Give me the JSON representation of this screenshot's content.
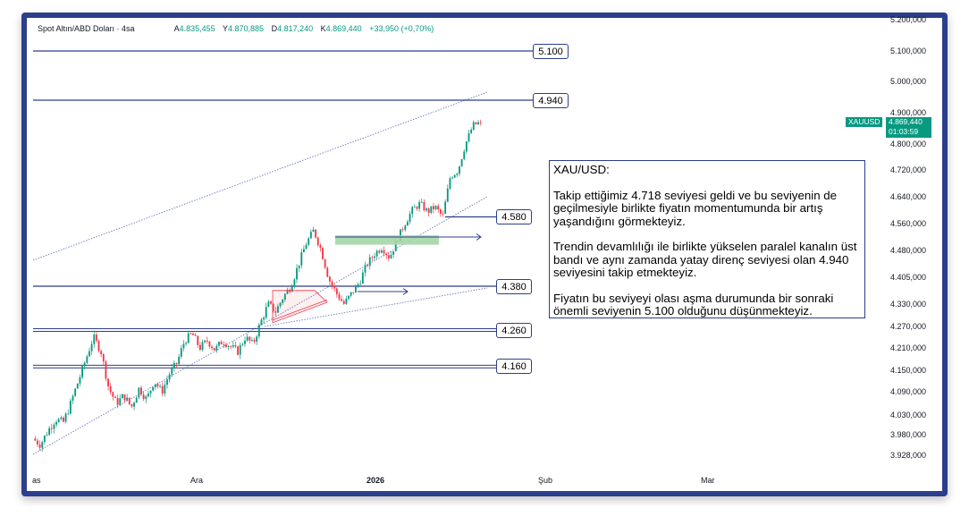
{
  "header": {
    "symbol_title": "Spot Altın/ABD Doları · 4sa",
    "open_label": "A",
    "open_value": "4.835,455",
    "high_label": "Y",
    "high_value": "4.870,885",
    "low_label": "D",
    "low_value": "4.817,240",
    "close_label": "K",
    "close_value": "4.869,440",
    "change": "+33,950 (+0,70%)"
  },
  "price_tag": {
    "symbol": "XAUUSD",
    "price": "4.869,440",
    "countdown": "01:03:59"
  },
  "annotation": {
    "title": "XAU/USD:",
    "paragraphs": [
      "Takip ettiğimiz 4.718 seviyesi geldi ve bu seviyenin de geçilmesiyle birlikte fiyatın momentumunda bir artış yaşandığını görmekteyiz.",
      "Trendin devamlılığı ile birlikte yükselen paralel kanalın üst bandı ve aynı zamanda yatay direnç seviyesi olan 4.940 seviyesini takip etmekteyiz.",
      "Fiyatın bu seviyeyi olası aşma durumunda bir sonraki önemli seviyenin 5.100 olduğunu düşünmekteyiz."
    ]
  },
  "levels": [
    {
      "label": "5.100",
      "value": 5100
    },
    {
      "label": "4.940",
      "value": 4940
    },
    {
      "label": "4.580",
      "value": 4580
    },
    {
      "label": "4.380",
      "value": 4380
    },
    {
      "label": "4.260",
      "value": 4260
    },
    {
      "label": "4.160",
      "value": 4160
    }
  ],
  "colors": {
    "up": "#089981",
    "down": "#f23645",
    "level_line": "#2b3f8c",
    "channel": "#7b86c8",
    "zone": "#a5d6a7"
  },
  "chart_data": {
    "type": "candlestick",
    "title": "Spot Altın/ABD Doları · 4sa",
    "y_axis_ticks": [
      {
        "label": "5.200,000",
        "value": 5200
      },
      {
        "label": "5.100,000",
        "value": 5100
      },
      {
        "label": "5.000,000",
        "value": 5000
      },
      {
        "label": "4.900,000",
        "value": 4900
      },
      {
        "label": "4.800,000",
        "value": 4800
      },
      {
        "label": "4.720,000",
        "value": 4720
      },
      {
        "label": "4.640,000",
        "value": 4640
      },
      {
        "label": "4.560,000",
        "value": 4560
      },
      {
        "label": "4.480,000",
        "value": 4480
      },
      {
        "label": "4.405,000",
        "value": 4405
      },
      {
        "label": "4.330,000",
        "value": 4330
      },
      {
        "label": "4.270,000",
        "value": 4270
      },
      {
        "label": "4.210,000",
        "value": 4210
      },
      {
        "label": "4.150,000",
        "value": 4150
      },
      {
        "label": "4.090,000",
        "value": 4090
      },
      {
        "label": "4.030,000",
        "value": 4030
      },
      {
        "label": "3.980,000",
        "value": 3980
      },
      {
        "label": "3.928,000",
        "value": 3928
      }
    ],
    "x_axis_ticks": [
      {
        "label": "as",
        "bold": false
      },
      {
        "label": "Ara",
        "bold": false
      },
      {
        "label": "2026",
        "bold": true
      },
      {
        "label": "Şub",
        "bold": false
      },
      {
        "label": "Mar",
        "bold": false
      }
    ],
    "horizontal_levels": [
      5100,
      4940,
      4580,
      4380,
      4260,
      4160
    ],
    "price_path": [
      3970,
      3955,
      3990,
      4020,
      4010,
      4060,
      4120,
      4180,
      4240,
      4200,
      4100,
      4060,
      4080,
      4050,
      4100,
      4070,
      4120,
      4090,
      4140,
      4170,
      4230,
      4250,
      4210,
      4230,
      4205,
      4230,
      4215,
      4200,
      4240,
      4220,
      4280,
      4330,
      4310,
      4350,
      4380,
      4440,
      4500,
      4540,
      4480,
      4400,
      4360,
      4330,
      4360,
      4390,
      4440,
      4470,
      4490,
      4460,
      4510,
      4560,
      4600,
      4620,
      4595,
      4610,
      4580,
      4700,
      4718,
      4800,
      4860,
      4869
    ]
  }
}
